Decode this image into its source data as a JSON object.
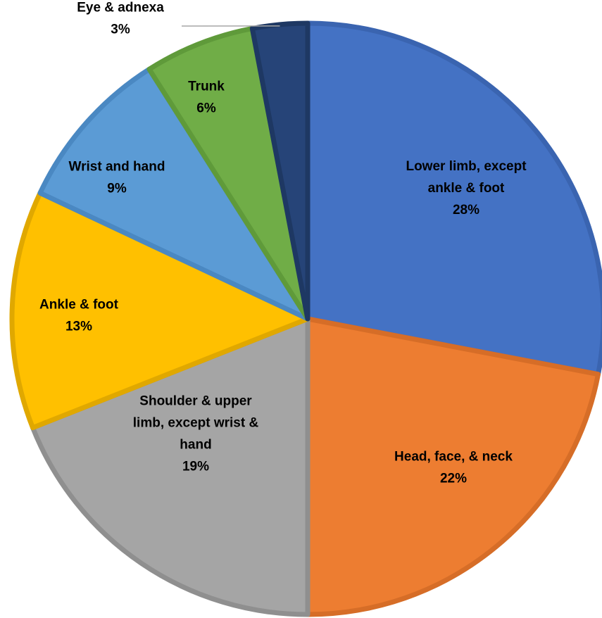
{
  "chart_data": {
    "type": "pie",
    "title": "",
    "slices": [
      {
        "label_lines": [
          "Lower limb, except",
          "ankle & foot"
        ],
        "percent_label": "28%",
        "value": 28,
        "color": "#4472c4",
        "border": "#3a64b0"
      },
      {
        "label_lines": [
          "Head, face, & neck"
        ],
        "percent_label": "22%",
        "value": 22,
        "color": "#ed7d31",
        "border": "#d66d27"
      },
      {
        "label_lines": [
          "Shoulder & upper",
          "limb, except wrist &",
          "hand"
        ],
        "percent_label": "19%",
        "value": 19,
        "color": "#a5a5a5",
        "border": "#8f8f8f"
      },
      {
        "label_lines": [
          "Ankle & foot"
        ],
        "percent_label": "13%",
        "value": 13,
        "color": "#ffc000",
        "border": "#e0a800"
      },
      {
        "label_lines": [
          "Wrist and hand"
        ],
        "percent_label": "9%",
        "value": 9,
        "color": "#5b9bd5",
        "border": "#4a88c2"
      },
      {
        "label_lines": [
          "Trunk"
        ],
        "percent_label": "6%",
        "value": 6,
        "color": "#70ad47",
        "border": "#5f9a3a"
      },
      {
        "label_lines": [
          "Eye & adnexa"
        ],
        "percent_label": "3%",
        "value": 3,
        "color": "#264478",
        "border": "#1e3863"
      }
    ],
    "start_direction": "12 o'clock",
    "direction": "clockwise",
    "legend": "none",
    "data_labels": "inside slices, bold; Eye & adnexa label outside top with leader line"
  }
}
